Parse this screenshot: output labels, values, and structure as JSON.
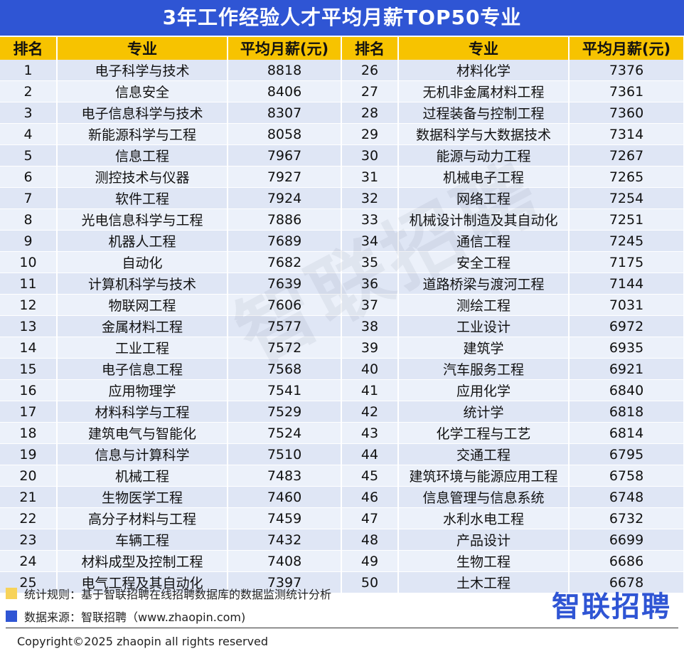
{
  "title": "3年工作经验人才平均月薪TOP50专业",
  "headers": {
    "rank": "排名",
    "major": "专业",
    "salary": "平均月薪(元)"
  },
  "rows": [
    {
      "left": {
        "rank": "1",
        "major": "电子科学与技术",
        "salary": "8818"
      },
      "right": {
        "rank": "26",
        "major": "材料化学",
        "salary": "7376"
      }
    },
    {
      "left": {
        "rank": "2",
        "major": "信息安全",
        "salary": "8406"
      },
      "right": {
        "rank": "27",
        "major": "无机非金属材料工程",
        "salary": "7361"
      }
    },
    {
      "left": {
        "rank": "3",
        "major": "电子信息科学与技术",
        "salary": "8307"
      },
      "right": {
        "rank": "28",
        "major": "过程装备与控制工程",
        "salary": "7360"
      }
    },
    {
      "left": {
        "rank": "4",
        "major": "新能源科学与工程",
        "salary": "8058"
      },
      "right": {
        "rank": "29",
        "major": "数据科学与大数据技术",
        "salary": "7314"
      }
    },
    {
      "left": {
        "rank": "5",
        "major": "信息工程",
        "salary": "7967"
      },
      "right": {
        "rank": "30",
        "major": "能源与动力工程",
        "salary": "7267"
      }
    },
    {
      "left": {
        "rank": "6",
        "major": "测控技术与仪器",
        "salary": "7927"
      },
      "right": {
        "rank": "31",
        "major": "机械电子工程",
        "salary": "7265"
      }
    },
    {
      "left": {
        "rank": "7",
        "major": "软件工程",
        "salary": "7924"
      },
      "right": {
        "rank": "32",
        "major": "网络工程",
        "salary": "7254"
      }
    },
    {
      "left": {
        "rank": "8",
        "major": "光电信息科学与工程",
        "salary": "7886"
      },
      "right": {
        "rank": "33",
        "major": "机械设计制造及其自动化",
        "salary": "7251"
      }
    },
    {
      "left": {
        "rank": "9",
        "major": "机器人工程",
        "salary": "7689"
      },
      "right": {
        "rank": "34",
        "major": "通信工程",
        "salary": "7245"
      }
    },
    {
      "left": {
        "rank": "10",
        "major": "自动化",
        "salary": "7682"
      },
      "right": {
        "rank": "35",
        "major": "安全工程",
        "salary": "7175"
      }
    },
    {
      "left": {
        "rank": "11",
        "major": "计算机科学与技术",
        "salary": "7639"
      },
      "right": {
        "rank": "36",
        "major": "道路桥梁与渡河工程",
        "salary": "7144"
      }
    },
    {
      "left": {
        "rank": "12",
        "major": "物联网工程",
        "salary": "7606"
      },
      "right": {
        "rank": "37",
        "major": "测绘工程",
        "salary": "7031"
      }
    },
    {
      "left": {
        "rank": "13",
        "major": "金属材料工程",
        "salary": "7577"
      },
      "right": {
        "rank": "38",
        "major": "工业设计",
        "salary": "6972"
      }
    },
    {
      "left": {
        "rank": "14",
        "major": "工业工程",
        "salary": "7572"
      },
      "right": {
        "rank": "39",
        "major": "建筑学",
        "salary": "6935"
      }
    },
    {
      "left": {
        "rank": "15",
        "major": "电子信息工程",
        "salary": "7568"
      },
      "right": {
        "rank": "40",
        "major": "汽车服务工程",
        "salary": "6921"
      }
    },
    {
      "left": {
        "rank": "16",
        "major": "应用物理学",
        "salary": "7541"
      },
      "right": {
        "rank": "41",
        "major": "应用化学",
        "salary": "6840"
      }
    },
    {
      "left": {
        "rank": "17",
        "major": "材料科学与工程",
        "salary": "7529"
      },
      "right": {
        "rank": "42",
        "major": "统计学",
        "salary": "6818"
      }
    },
    {
      "left": {
        "rank": "18",
        "major": "建筑电气与智能化",
        "salary": "7524"
      },
      "right": {
        "rank": "43",
        "major": "化学工程与工艺",
        "salary": "6814"
      }
    },
    {
      "left": {
        "rank": "19",
        "major": "信息与计算科学",
        "salary": "7510"
      },
      "right": {
        "rank": "44",
        "major": "交通工程",
        "salary": "6795"
      }
    },
    {
      "left": {
        "rank": "20",
        "major": "机械工程",
        "salary": "7483"
      },
      "right": {
        "rank": "45",
        "major": "建筑环境与能源应用工程",
        "salary": "6758"
      }
    },
    {
      "left": {
        "rank": "21",
        "major": "生物医学工程",
        "salary": "7460"
      },
      "right": {
        "rank": "46",
        "major": "信息管理与信息系统",
        "salary": "6748"
      }
    },
    {
      "left": {
        "rank": "22",
        "major": "高分子材料与工程",
        "salary": "7459"
      },
      "right": {
        "rank": "47",
        "major": "水利水电工程",
        "salary": "6732"
      }
    },
    {
      "left": {
        "rank": "23",
        "major": "车辆工程",
        "salary": "7432"
      },
      "right": {
        "rank": "48",
        "major": "产品设计",
        "salary": "6699"
      }
    },
    {
      "left": {
        "rank": "24",
        "major": "材料成型及控制工程",
        "salary": "7408"
      },
      "right": {
        "rank": "49",
        "major": "生物工程",
        "salary": "6686"
      }
    },
    {
      "left": {
        "rank": "25",
        "major": "电气工程及其自动化",
        "salary": "7397"
      },
      "right": {
        "rank": "50",
        "major": "土木工程",
        "salary": "6678"
      }
    }
  ],
  "watermark": "智联招聘",
  "notes": {
    "rule": "统计规则：基于智联招聘在线招聘数据库的数据监测统计分析",
    "source": "数据来源：智联招聘（www.zhaopin.com)"
  },
  "logo": "智联招聘",
  "copyright": "Copyright©2025 zhaopin all rights reserved",
  "colors": {
    "title_bg": "#2f55d4",
    "header_bg": "#f7c300",
    "row_odd": "#dfe6f5",
    "row_even": "#ecf1fa",
    "legend_yellow": "#f7d35a",
    "legend_blue": "#2f55d4"
  }
}
